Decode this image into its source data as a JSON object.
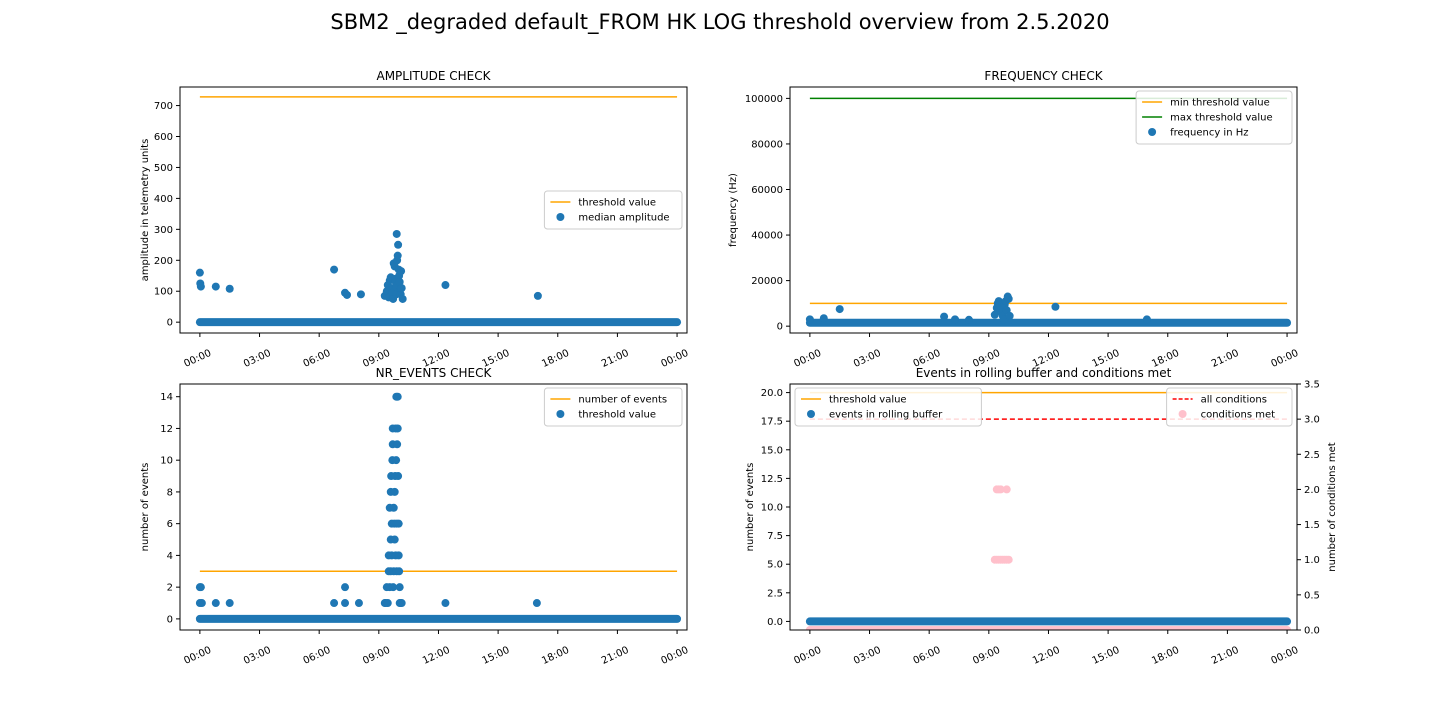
{
  "figure": {
    "title": "SBM2 _degraded default_FROM HK LOG threshold overview from 2.5.2020"
  },
  "colors": {
    "blue": "#1f77b4",
    "orange": "#ffa500",
    "green": "#008000",
    "red": "#ff0000",
    "pink": "#ffc0cb"
  },
  "chart_data": [
    {
      "id": "amplitude",
      "type": "scatter",
      "title": "AMPLITUDE CHECK",
      "xlabel": "",
      "ylabel": "amplitude in telemetry units",
      "xlim_hours": [
        -1.0,
        24.5
      ],
      "ylim": [
        -35,
        760
      ],
      "xticks": [
        0,
        3,
        6,
        9,
        12,
        15,
        18,
        21,
        24
      ],
      "xtick_labels": [
        "00:00",
        "03:00",
        "06:00",
        "09:00",
        "12:00",
        "15:00",
        "18:00",
        "21:00",
        "00:00"
      ],
      "yticks": [
        0,
        100,
        200,
        300,
        400,
        500,
        600,
        700
      ],
      "ytick_labels": [
        "0",
        "100",
        "200",
        "300",
        "400",
        "500",
        "600",
        "700"
      ],
      "legend_position": "center-right",
      "series": [
        {
          "name": "threshold value",
          "kind": "line",
          "color": "#ffa500",
          "x_hours": [
            0,
            24
          ],
          "y": [
            728,
            728
          ]
        },
        {
          "name": "median amplitude",
          "kind": "scatter",
          "color": "#1f77b4",
          "baseline": {
            "x_range_hours": [
              0,
              24
            ],
            "y": 0
          },
          "points": [
            [
              0,
              160
            ],
            [
              0.02,
              125
            ],
            [
              0.05,
              115
            ],
            [
              0.8,
              115
            ],
            [
              1.5,
              108
            ],
            [
              6.75,
              170
            ],
            [
              7.3,
              95
            ],
            [
              7.4,
              88
            ],
            [
              8.1,
              90
            ],
            [
              9.3,
              85
            ],
            [
              9.4,
              100
            ],
            [
              9.45,
              120
            ],
            [
              9.5,
              80
            ],
            [
              9.55,
              135
            ],
            [
              9.6,
              145
            ],
            [
              9.65,
              110
            ],
            [
              9.7,
              95
            ],
            [
              9.72,
              75
            ],
            [
              9.75,
              190
            ],
            [
              9.8,
              180
            ],
            [
              9.82,
              140
            ],
            [
              9.85,
              130
            ],
            [
              9.87,
              115
            ],
            [
              9.88,
              90
            ],
            [
              9.9,
              285
            ],
            [
              9.92,
              200
            ],
            [
              9.95,
              215
            ],
            [
              9.97,
              250
            ],
            [
              10.0,
              170
            ],
            [
              10.02,
              150
            ],
            [
              10.05,
              130
            ],
            [
              10.08,
              105
            ],
            [
              10.1,
              90
            ],
            [
              10.12,
              165
            ],
            [
              10.15,
              110
            ],
            [
              10.2,
              75
            ],
            [
              12.35,
              120
            ],
            [
              17.0,
              85
            ]
          ]
        }
      ]
    },
    {
      "id": "frequency",
      "type": "scatter",
      "title": "FREQUENCY CHECK",
      "xlabel": "",
      "ylabel": "frequency (Hz)",
      "xlim_hours": [
        -1.0,
        24.5
      ],
      "ylim": [
        -3000,
        105000
      ],
      "xticks": [
        0,
        3,
        6,
        9,
        12,
        15,
        18,
        21,
        24
      ],
      "xtick_labels": [
        "00:00",
        "03:00",
        "06:00",
        "09:00",
        "12:00",
        "15:00",
        "18:00",
        "21:00",
        "00:00"
      ],
      "yticks": [
        0,
        20000,
        40000,
        60000,
        80000,
        100000
      ],
      "ytick_labels": [
        "0",
        "20000",
        "40000",
        "60000",
        "80000",
        "100000"
      ],
      "legend_position": "top-right",
      "series": [
        {
          "name": "min threshold value",
          "kind": "line",
          "color": "#ffa500",
          "x_hours": [
            0,
            24
          ],
          "y": [
            10000,
            10000
          ]
        },
        {
          "name": "max threshold value",
          "kind": "line",
          "color": "#008000",
          "x_hours": [
            0,
            24
          ],
          "y": [
            100000,
            100000
          ]
        },
        {
          "name": "frequency in Hz",
          "kind": "scatter",
          "color": "#1f77b4",
          "baseline": {
            "x_range_hours": [
              0,
              24
            ],
            "y": 1500
          },
          "points": [
            [
              0,
              3000
            ],
            [
              0.7,
              3500
            ],
            [
              1.5,
              7500
            ],
            [
              6.75,
              4200
            ],
            [
              7.3,
              3000
            ],
            [
              8.0,
              2800
            ],
            [
              9.3,
              5000
            ],
            [
              9.4,
              8000
            ],
            [
              9.45,
              10000
            ],
            [
              9.5,
              11000
            ],
            [
              9.55,
              9500
            ],
            [
              9.6,
              7000
            ],
            [
              9.65,
              6000
            ],
            [
              9.7,
              4500
            ],
            [
              9.75,
              3000
            ],
            [
              9.8,
              9500
            ],
            [
              9.85,
              11000
            ],
            [
              9.9,
              7000
            ],
            [
              9.95,
              13000
            ],
            [
              10.0,
              12000
            ],
            [
              10.05,
              4500
            ],
            [
              12.35,
              8500
            ],
            [
              16.95,
              3000
            ]
          ]
        }
      ]
    },
    {
      "id": "nr_events",
      "type": "scatter",
      "title": "NR_EVENTS CHECK",
      "xlabel": "",
      "ylabel": "number of events",
      "xlim_hours": [
        -1.0,
        24.5
      ],
      "ylim": [
        -0.7,
        14.8
      ],
      "xticks": [
        0,
        3,
        6,
        9,
        12,
        15,
        18,
        21,
        24
      ],
      "xtick_labels": [
        "00:00",
        "03:00",
        "06:00",
        "09:00",
        "12:00",
        "15:00",
        "18:00",
        "21:00",
        "00:00"
      ],
      "yticks": [
        0,
        2,
        4,
        6,
        8,
        10,
        12,
        14
      ],
      "ytick_labels": [
        "0",
        "2",
        "4",
        "6",
        "8",
        "10",
        "12",
        "14"
      ],
      "legend_position": "top-right",
      "series": [
        {
          "name": "number of events",
          "kind": "line",
          "color": "#ffa500",
          "x_hours": [
            0,
            24
          ],
          "y": [
            3,
            3
          ]
        },
        {
          "name": "threshold value",
          "kind": "scatter",
          "color": "#1f77b4",
          "baseline": {
            "x_range_hours": [
              0,
              24
            ],
            "y": 0
          },
          "points": [
            [
              0,
              2
            ],
            [
              0.05,
              2
            ],
            [
              0,
              1
            ],
            [
              0.1,
              1
            ],
            [
              0.8,
              1
            ],
            [
              1.5,
              1
            ],
            [
              6.75,
              1
            ],
            [
              7.3,
              2
            ],
            [
              7.3,
              1
            ],
            [
              8.0,
              1
            ],
            [
              12.35,
              1
            ],
            [
              16.95,
              1
            ],
            [
              9.3,
              1
            ],
            [
              9.35,
              1
            ],
            [
              9.4,
              2
            ],
            [
              9.45,
              1
            ],
            [
              9.5,
              3
            ],
            [
              9.5,
              4
            ],
            [
              9.55,
              2
            ],
            [
              9.55,
              7
            ],
            [
              9.6,
              3
            ],
            [
              9.6,
              5
            ],
            [
              9.6,
              8
            ],
            [
              9.62,
              9
            ],
            [
              9.65,
              4
            ],
            [
              9.65,
              6
            ],
            [
              9.68,
              10
            ],
            [
              9.7,
              11
            ],
            [
              9.7,
              12
            ],
            [
              9.72,
              2
            ],
            [
              9.75,
              3
            ],
            [
              9.75,
              7
            ],
            [
              9.78,
              6
            ],
            [
              9.8,
              5
            ],
            [
              9.8,
              8
            ],
            [
              9.82,
              9
            ],
            [
              9.85,
              4
            ],
            [
              9.85,
              12
            ],
            [
              9.87,
              10
            ],
            [
              9.88,
              14
            ],
            [
              9.9,
              3
            ],
            [
              9.9,
              6
            ],
            [
              9.92,
              11
            ],
            [
              9.95,
              14
            ],
            [
              9.95,
              12
            ],
            [
              9.97,
              9
            ],
            [
              10.0,
              4
            ],
            [
              10.0,
              6
            ],
            [
              10.02,
              3
            ],
            [
              10.05,
              2
            ],
            [
              10.05,
              1
            ],
            [
              10.1,
              1
            ],
            [
              10.15,
              1
            ]
          ]
        }
      ]
    },
    {
      "id": "rolling_buffer",
      "type": "scatter",
      "title": "Events in rolling buffer and conditions met",
      "xlabel": "",
      "ylabel": "number of events",
      "ylabel_right": "number of conditions met",
      "xlim_hours": [
        -1.0,
        24.5
      ],
      "ylim": [
        -0.75,
        20.75
      ],
      "ylim_right": [
        0,
        3.5
      ],
      "xticks": [
        0,
        3,
        6,
        9,
        12,
        15,
        18,
        21,
        24
      ],
      "xtick_labels": [
        "00:00",
        "03:00",
        "06:00",
        "09:00",
        "12:00",
        "15:00",
        "18:00",
        "21:00",
        "00:00"
      ],
      "yticks": [
        0,
        2.5,
        5,
        7.5,
        10,
        12.5,
        15,
        17.5,
        20
      ],
      "ytick_labels": [
        "0.0",
        "2.5",
        "5.0",
        "7.5",
        "10.0",
        "12.5",
        "15.0",
        "17.5",
        "20.0"
      ],
      "yticks_right": [
        0,
        0.5,
        1,
        1.5,
        2,
        2.5,
        3,
        3.5
      ],
      "ytick_labels_right": [
        "0.0",
        "0.5",
        "1.0",
        "1.5",
        "2.0",
        "2.5",
        "3.0",
        "3.5"
      ],
      "legend_position": "top-left",
      "legend_right_position": "top-right",
      "series": [
        {
          "name": "threshold value",
          "kind": "line",
          "axis": "left",
          "color": "#ffa500",
          "x_hours": [
            0,
            24
          ],
          "y": [
            20,
            20
          ]
        },
        {
          "name": "events in rolling buffer",
          "kind": "scatter",
          "axis": "left",
          "color": "#1f77b4",
          "baseline": {
            "x_range_hours": [
              0,
              24
            ],
            "y": 0
          },
          "points": []
        },
        {
          "name": "all conditions",
          "kind": "dashed-line",
          "axis": "right",
          "color": "#ff0000",
          "x_hours": [
            0,
            24
          ],
          "y": [
            3,
            3
          ]
        },
        {
          "name": "conditions met",
          "kind": "scatter",
          "axis": "right",
          "color": "#ffc0cb",
          "baseline": {
            "x_range_hours": [
              0,
              24
            ],
            "y": 0
          },
          "points": [
            [
              9.3,
              1
            ],
            [
              9.4,
              1
            ],
            [
              9.5,
              1
            ],
            [
              9.6,
              1
            ],
            [
              9.7,
              1
            ],
            [
              9.8,
              1
            ],
            [
              9.9,
              1
            ],
            [
              10.0,
              1
            ],
            [
              9.4,
              2
            ],
            [
              9.5,
              2
            ],
            [
              9.6,
              2
            ],
            [
              9.9,
              2
            ]
          ]
        }
      ]
    }
  ]
}
